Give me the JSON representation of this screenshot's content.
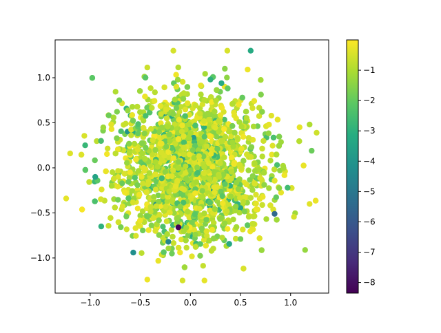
{
  "chart_data": {
    "type": "scatter",
    "title": "",
    "xlabel": "",
    "ylabel": "",
    "xlim": [
      -1.35,
      1.38
    ],
    "ylim": [
      -1.39,
      1.42
    ],
    "x_ticks": [
      -1.0,
      -0.5,
      0.0,
      0.5,
      1.0
    ],
    "x_tick_labels": [
      "−1.0",
      "−0.5",
      "0.0",
      "0.5",
      "1.0"
    ],
    "y_ticks": [
      -1.0,
      -0.5,
      0.0,
      0.5,
      1.0
    ],
    "y_tick_labels": [
      "−1.0",
      "−0.5",
      "0.0",
      "0.5",
      "1.0"
    ],
    "grid": false,
    "legend": "none",
    "colorbar": {
      "colormap": "viridis",
      "range": [
        -8.35,
        0
      ],
      "ticks": [
        -8,
        -7,
        -6,
        -5,
        -4,
        -3,
        -2,
        -1
      ],
      "tick_labels": [
        "−8",
        "−7",
        "−6",
        "−5",
        "−4",
        "−3",
        "−2",
        "−1"
      ]
    },
    "marker_color_range": [
      "#440154",
      "#fde725"
    ],
    "point_count": 2500,
    "notable_points": [
      {
        "x": -0.12,
        "y": -0.66,
        "c": -8.3
      },
      {
        "x": 0.84,
        "y": -0.51,
        "c": -5.5
      },
      {
        "x": -0.57,
        "y": -0.94,
        "c": -4.2
      },
      {
        "x": -0.22,
        "y": -0.82,
        "c": -4.5
      },
      {
        "x": -0.89,
        "y": -0.65,
        "c": -3.0
      },
      {
        "x": 0.31,
        "y": 0.94,
        "c": -3.2
      },
      {
        "x": -1.05,
        "y": 0.25,
        "c": -2.8
      },
      {
        "x": -1.24,
        "y": -0.34,
        "c": -0.3
      },
      {
        "x": -0.43,
        "y": -1.24,
        "c": -0.2
      },
      {
        "x": 0.14,
        "y": -1.25,
        "c": -0.3
      },
      {
        "x": -0.17,
        "y": 1.3,
        "c": -0.5
      },
      {
        "x": 1.26,
        "y": 0.39,
        "c": -0.6
      },
      {
        "x": 1.21,
        "y": 0.19,
        "c": -1.9
      },
      {
        "x": -0.95,
        "y": -0.1,
        "c": -3.5
      },
      {
        "x": 0.97,
        "y": -0.22,
        "c": -2.6
      },
      {
        "x": 1.09,
        "y": 0.45,
        "c": -0.3
      },
      {
        "x": -1.2,
        "y": 0.16,
        "c": -0.4
      },
      {
        "x": 0.62,
        "y": -0.62,
        "c": -0.7
      },
      {
        "x": 0.5,
        "y": -0.79,
        "c": -1.8
      },
      {
        "x": 0.2,
        "y": 0.98,
        "c": -3.0
      }
    ]
  }
}
